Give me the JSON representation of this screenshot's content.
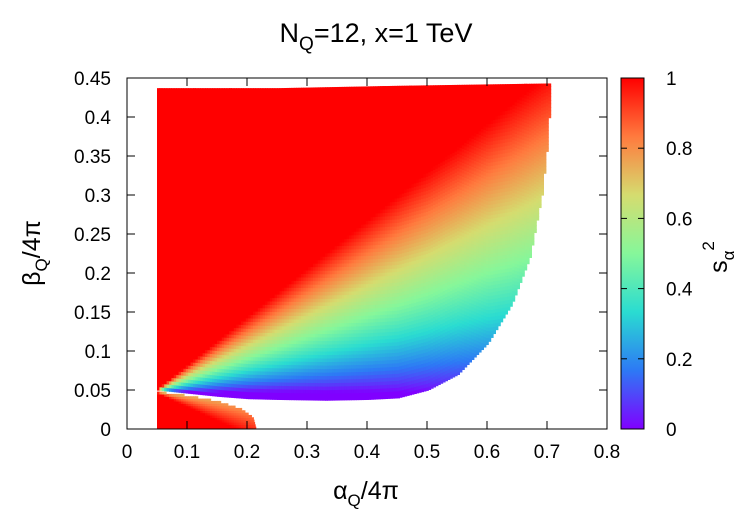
{
  "chart_data": {
    "type": "heatmap",
    "title": {
      "main": "N",
      "main_sub": "Q",
      "rest": "=12, x=1 TeV"
    },
    "xlabel": {
      "sym": "α",
      "sub": "Q",
      "rest": "/4π"
    },
    "ylabel": {
      "sym": "β",
      "sub": "Q",
      "rest": "/4π"
    },
    "colorbar_label": {
      "sym": "s",
      "sub": "α",
      "sup": "2"
    },
    "xlim": [
      0,
      0.8
    ],
    "ylim": [
      0,
      0.45
    ],
    "zlim": [
      0,
      1
    ],
    "x_ticks": [
      {
        "value": 0,
        "label": "0"
      },
      {
        "value": 0.1,
        "label": "0.1"
      },
      {
        "value": 0.2,
        "label": "0.2"
      },
      {
        "value": 0.3,
        "label": "0.3"
      },
      {
        "value": 0.4,
        "label": "0.4"
      },
      {
        "value": 0.5,
        "label": "0.5"
      },
      {
        "value": 0.6,
        "label": "0.6"
      },
      {
        "value": 0.7,
        "label": "0.7"
      },
      {
        "value": 0.8,
        "label": "0.8"
      }
    ],
    "y_ticks": [
      {
        "value": 0,
        "label": "0"
      },
      {
        "value": 0.05,
        "label": "0.05"
      },
      {
        "value": 0.1,
        "label": "0.1"
      },
      {
        "value": 0.15,
        "label": "0.15"
      },
      {
        "value": 0.2,
        "label": "0.2"
      },
      {
        "value": 0.25,
        "label": "0.25"
      },
      {
        "value": 0.3,
        "label": "0.3"
      },
      {
        "value": 0.35,
        "label": "0.35"
      },
      {
        "value": 0.4,
        "label": "0.4"
      },
      {
        "value": 0.45,
        "label": "0.45"
      }
    ],
    "colorbar_ticks": [
      {
        "value": 0,
        "label": "0"
      },
      {
        "value": 0.2,
        "label": "0.2"
      },
      {
        "value": 0.4,
        "label": "0.4"
      },
      {
        "value": 0.6,
        "label": "0.6"
      },
      {
        "value": 0.8,
        "label": "0.8"
      },
      {
        "value": 1,
        "label": "1"
      }
    ],
    "colormap": "rainbow (violet at 0, red at 1)",
    "colormap_stops": [
      "#8000ff",
      "#2d79f5",
      "#2adcd1",
      "#86f79a",
      "#d5dc6f",
      "#ff7a3e",
      "#ff0000"
    ],
    "grid": false,
    "regions": {
      "upper_region": {
        "description": "filled region",
        "alpha_min": 0.05,
        "beta_top": [
          [
            0.05,
            0.437
          ],
          [
            0.25,
            0.437
          ],
          [
            0.45,
            0.44
          ],
          [
            0.7,
            0.443
          ]
        ],
        "right_boundary": [
          [
            0.33,
            0.037
          ],
          [
            0.4,
            0.038
          ],
          [
            0.45,
            0.04
          ],
          [
            0.5,
            0.05
          ],
          [
            0.55,
            0.07
          ],
          [
            0.6,
            0.11
          ],
          [
            0.64,
            0.16
          ],
          [
            0.67,
            0.22
          ],
          [
            0.69,
            0.3
          ],
          [
            0.7,
            0.37
          ],
          [
            0.705,
            0.443
          ]
        ],
        "lower_boundary": [
          [
            0.05,
            0.05
          ],
          [
            0.1,
            0.046
          ],
          [
            0.15,
            0.042
          ],
          [
            0.2,
            0.039
          ],
          [
            0.25,
            0.038
          ],
          [
            0.33,
            0.037
          ]
        ],
        "s2_at_left_edge": 1.0,
        "s2_at_lower_edge": 0.0
      },
      "lower_lobe": {
        "alpha_min": 0.05,
        "beta_range": [
          0,
          0.048
        ],
        "right_boundary": [
          [
            0.05,
            0.048
          ],
          [
            0.1,
            0.043
          ],
          [
            0.15,
            0.036
          ],
          [
            0.19,
            0.026
          ],
          [
            0.21,
            0.015
          ],
          [
            0.215,
            0.0
          ]
        ],
        "s2_min": 0.6,
        "s2_max": 1.0
      }
    }
  }
}
